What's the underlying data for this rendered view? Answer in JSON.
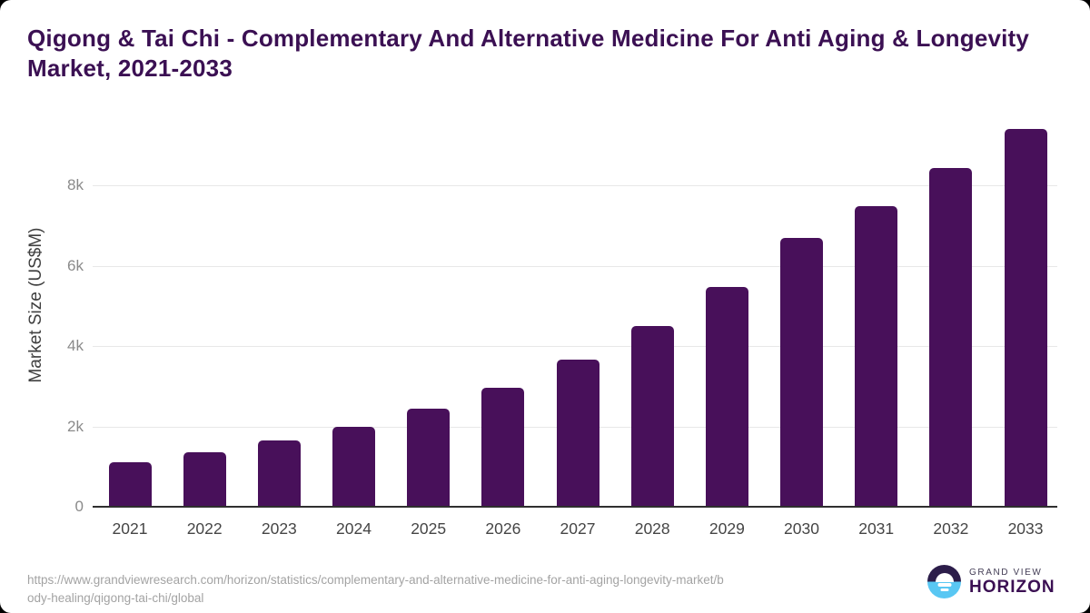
{
  "header": {
    "title_line1": "Qigong & Tai Chi - Complementary And Alternative Medicine For Anti Aging & Longevity",
    "title_line2": "Market, 2021-2033"
  },
  "chart_data": {
    "type": "bar",
    "title": "Qigong & Tai Chi - Complementary And Alternative Medicine For Anti Aging & Longevity Market, 2021-2033",
    "xlabel": "",
    "ylabel": "Market Size (US$M)",
    "categories": [
      "2021",
      "2022",
      "2023",
      "2024",
      "2025",
      "2026",
      "2027",
      "2028",
      "2029",
      "2030",
      "2031",
      "2032",
      "2033"
    ],
    "values": [
      1110,
      1350,
      1640,
      2000,
      2430,
      2970,
      3670,
      4490,
      5480,
      6680,
      7480,
      8440,
      9400
    ],
    "unit": "US$M",
    "ylim": [
      0,
      9560
    ],
    "yticks": [
      {
        "value": 0,
        "label": "0"
      },
      {
        "value": 2000,
        "label": "2k"
      },
      {
        "value": 4000,
        "label": "4k"
      },
      {
        "value": 6000,
        "label": "6k"
      },
      {
        "value": 8000,
        "label": "8k"
      }
    ],
    "grid": "horizontal",
    "legend": "none",
    "bar_color": "#48105a"
  },
  "footer": {
    "source_url_line1": "https://www.grandviewresearch.com/horizon/statistics/complementary-and-alternative-medicine-for-anti-aging-longevity-market/b",
    "source_url_line2": "ody-healing/qigong-tai-chi/global",
    "logo": {
      "brand_line1": "GRAND VIEW",
      "brand_line2": "HORIZON",
      "icon": "horizon-sunset-icon"
    }
  },
  "colors": {
    "bar": "#48105a",
    "title": "#3b1053",
    "gridline": "#e8e8e8",
    "logo_dark": "#2c1d4a",
    "logo_blue": "#59c7f3"
  }
}
